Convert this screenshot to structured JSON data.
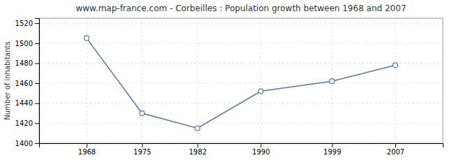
{
  "chart_data": {
    "type": "line",
    "title": "www.map-france.com - Corbeilles : Population growth between 1968 and 2007",
    "ylabel": "Number of inhabitants",
    "x": [
      1968,
      1975,
      1982,
      1990,
      1999,
      2007
    ],
    "values": [
      1505,
      1430,
      1415,
      1452,
      1462,
      1478
    ],
    "xlim": [
      1962,
      2013
    ],
    "xticks": [
      1968,
      1975,
      1982,
      1990,
      1999,
      2007
    ],
    "ylim": [
      1400,
      1525
    ],
    "yticks": [
      1400,
      1420,
      1440,
      1460,
      1480,
      1500,
      1520
    ],
    "color": "#5577aa",
    "marker": "circle",
    "grid": true
  }
}
